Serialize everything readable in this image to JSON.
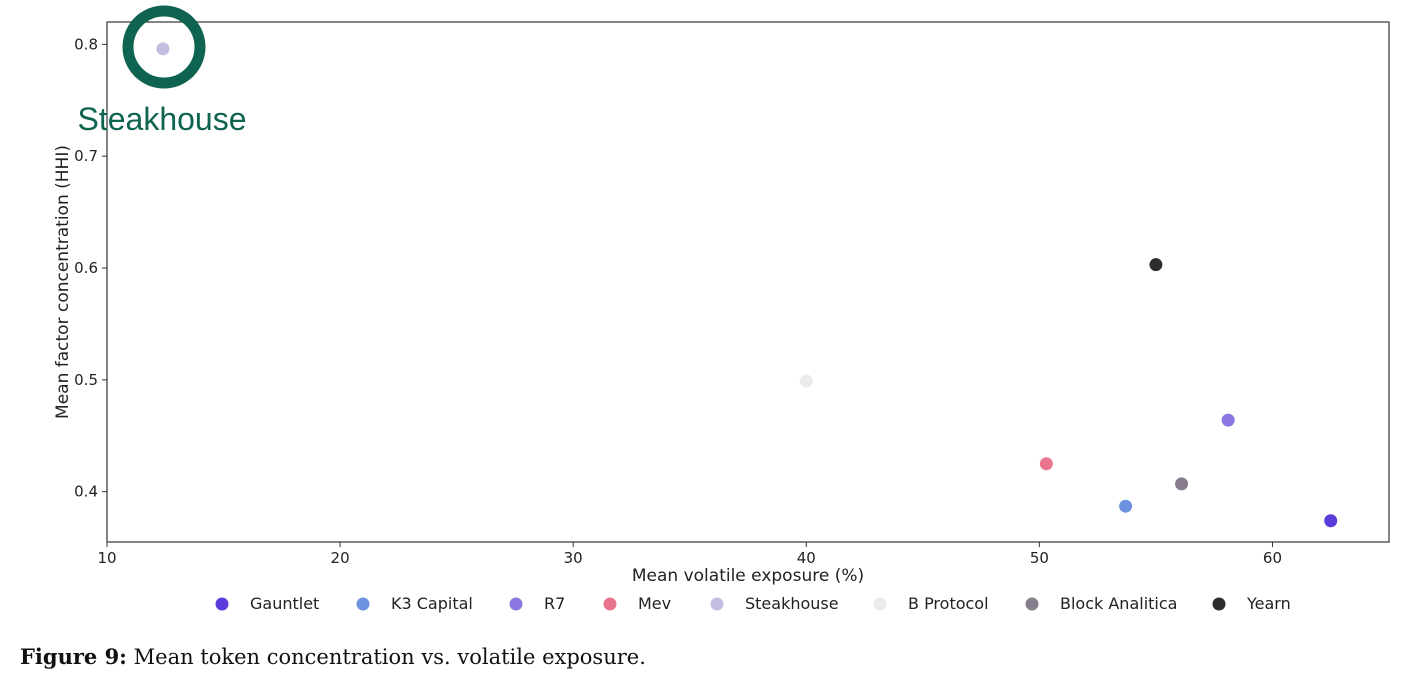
{
  "chart_data": {
    "type": "scatter",
    "title": "",
    "xlabel": "Mean volatile exposure (%)",
    "ylabel": "Mean factor concentration (HHI)",
    "xlim": [
      10,
      65
    ],
    "ylim": [
      0.355,
      0.82
    ],
    "xticks": [
      10,
      20,
      30,
      40,
      50,
      60
    ],
    "yticks": [
      0.4,
      0.5,
      0.6,
      0.7,
      0.8
    ],
    "grid": false,
    "legend_position": "bottom",
    "series": [
      {
        "name": "Gauntlet",
        "color": "#5b3bd9",
        "points": [
          {
            "x": 62.5,
            "y": 0.374
          }
        ]
      },
      {
        "name": "K3 Capital",
        "color": "#6d93e0",
        "points": [
          {
            "x": 53.7,
            "y": 0.387
          }
        ]
      },
      {
        "name": "R7",
        "color": "#8b77df",
        "points": [
          {
            "x": 58.1,
            "y": 0.464
          }
        ]
      },
      {
        "name": "Mev",
        "color": "#e8758c",
        "points": [
          {
            "x": 50.3,
            "y": 0.425
          }
        ]
      },
      {
        "name": "Steakhouse",
        "color": "#c2bfe0",
        "points": [
          {
            "x": 12.4,
            "y": 0.796
          }
        ]
      },
      {
        "name": "B Protocol",
        "color": "#ebebee",
        "points": [
          {
            "x": 40.0,
            "y": 0.499
          }
        ]
      },
      {
        "name": "Block Analitica",
        "color": "#887d8e",
        "points": [
          {
            "x": 56.1,
            "y": 0.407
          }
        ]
      },
      {
        "name": "Yearn",
        "color": "#2d2d2f",
        "points": [
          {
            "x": 55.0,
            "y": 0.603
          }
        ]
      }
    ],
    "annotation_logo": {
      "label": "Steakhouse",
      "color": "#0e6450"
    }
  },
  "caption": {
    "label": "Figure 9:",
    "text": "Mean token concentration vs. volatile exposure."
  }
}
